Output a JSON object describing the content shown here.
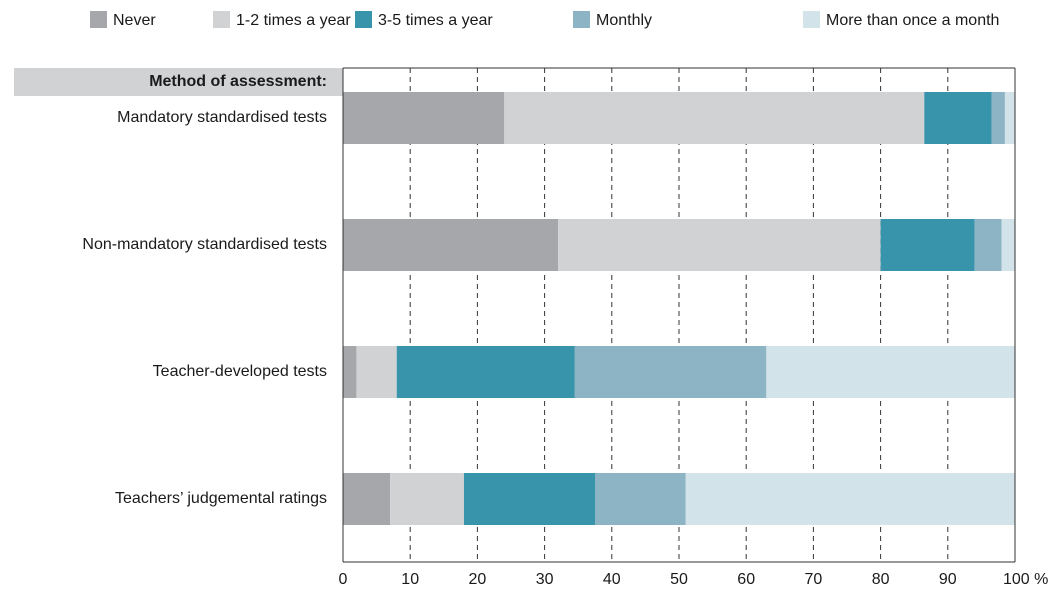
{
  "chart_data": {
    "type": "stacked_barh",
    "subheader": "Method of assessment:",
    "categories": [
      "Mandatory standardised tests",
      "Non-mandatory standardised tests",
      "Teacher-developed tests",
      "Teachers’ judgemental ratings"
    ],
    "series": [
      {
        "name": "Never",
        "color": "#a6a7ab",
        "values": [
          24,
          32,
          2,
          7
        ]
      },
      {
        "name": "1-2 times a year",
        "color": "#d1d2d4",
        "values": [
          62.5,
          48,
          6,
          11
        ]
      },
      {
        "name": "3-5 times a year",
        "color": "#3894ab",
        "values": [
          10,
          14,
          26.5,
          19.5
        ]
      },
      {
        "name": "Monthly",
        "color": "#8db4c4",
        "values": [
          2,
          4,
          28.5,
          13.5
        ]
      },
      {
        "name": "More than once a month",
        "color": "#d3e3ea",
        "values": [
          1.5,
          2,
          37,
          49
        ]
      }
    ],
    "xlim": [
      0,
      100
    ],
    "xticks": [
      0,
      10,
      20,
      30,
      40,
      50,
      60,
      70,
      80,
      90,
      {
        "value": 100,
        "label": "100 %"
      }
    ],
    "grid": true,
    "legend": "top"
  }
}
